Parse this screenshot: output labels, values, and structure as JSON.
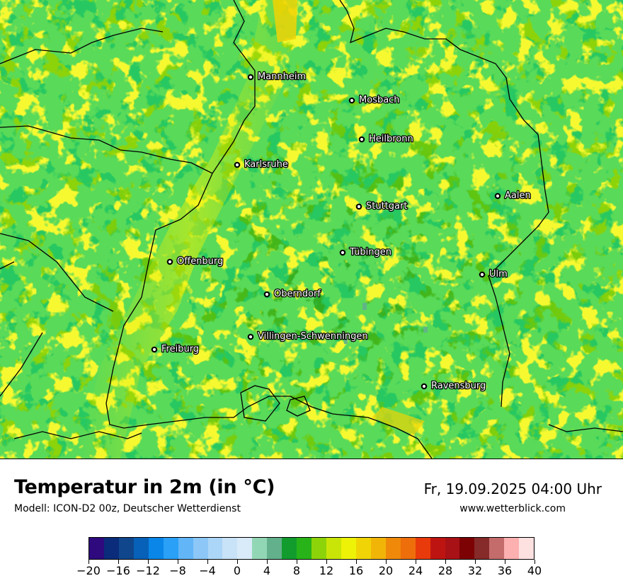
{
  "map": {
    "cities": [
      {
        "name": "Mannheim"
      },
      {
        "name": "Mosbach"
      },
      {
        "name": "Heilbronn"
      },
      {
        "name": "Karlsruhe"
      },
      {
        "name": "Aalen"
      },
      {
        "name": "Stuttgart"
      },
      {
        "name": "Tübingen"
      },
      {
        "name": "Offenburg"
      },
      {
        "name": "Ulm"
      },
      {
        "name": "Oberndorf"
      },
      {
        "name": "Villingen-Schwenningen"
      },
      {
        "name": "Freiburg"
      },
      {
        "name": "Ravensburg"
      }
    ]
  },
  "footer": {
    "title": "Temperatur in 2m (in °C)",
    "subtitle": "Modell: ICON-D2 00z, Deutscher Wetterdienst",
    "datetime": "Fr, 19.09.2025 04:00 Uhr",
    "website": "www.wetterblick.com"
  },
  "legend": {
    "colors": [
      "#2e0a7e",
      "#0a2c7a",
      "#0f468c",
      "#0761b8",
      "#0a86e8",
      "#2aa0f7",
      "#62b6f8",
      "#8cc7f7",
      "#acd6f7",
      "#c8e2f7",
      "#d9ebf8",
      "#92d7b5",
      "#63b18c",
      "#129c2e",
      "#28b418",
      "#8dd30a",
      "#c8e507",
      "#eef206",
      "#f0d406",
      "#f1b508",
      "#f0890a",
      "#ee6e0b",
      "#e93a0b",
      "#be1411",
      "#a81116",
      "#7d0204",
      "#862a2a",
      "#c46c6c",
      "#fdb0b0",
      "#fde0e0"
    ],
    "ticks": [
      "−20",
      "−16",
      "−12",
      "−8",
      "−4",
      "0",
      "4",
      "8",
      "12",
      "16",
      "20",
      "24",
      "28",
      "32",
      "36",
      "40"
    ]
  }
}
